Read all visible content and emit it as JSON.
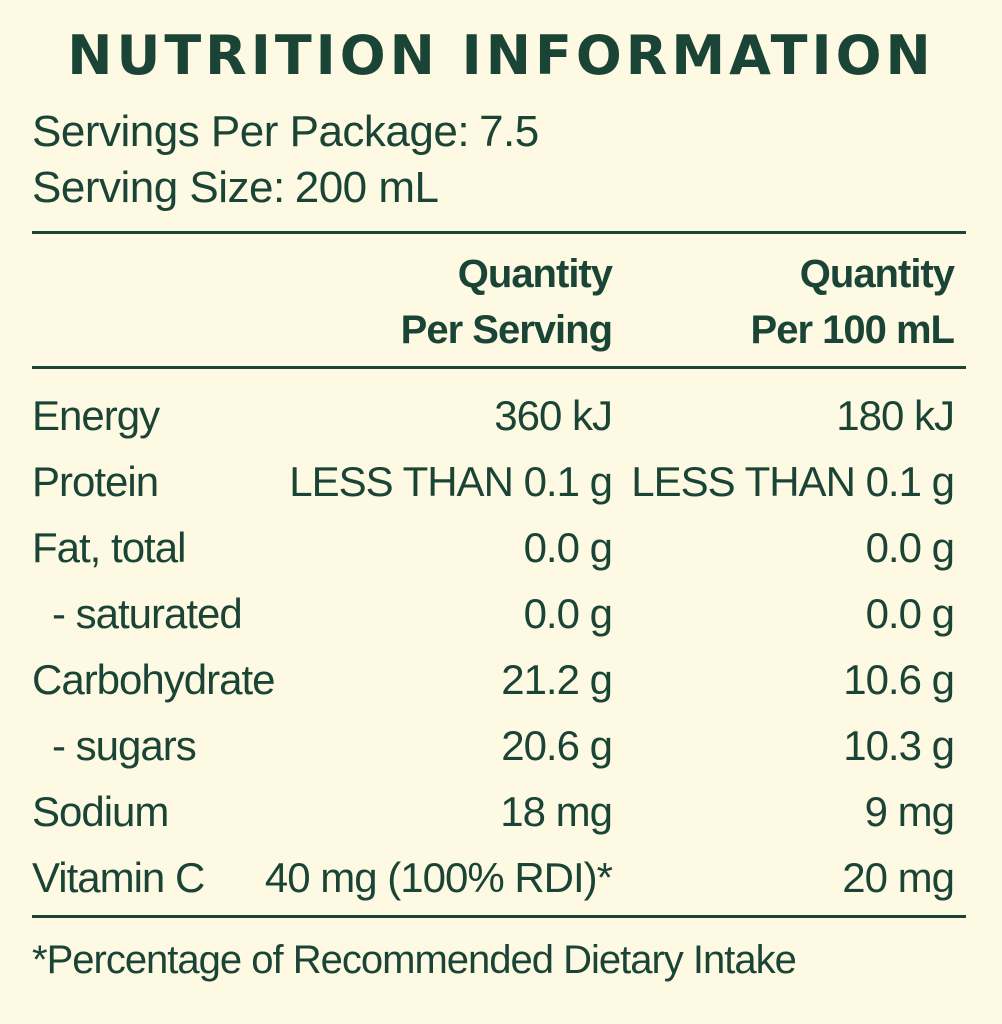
{
  "title": "NUTRITION INFORMATION",
  "servings_per_package": {
    "label": "Servings Per Package:",
    "value": "7.5"
  },
  "serving_size": {
    "label": "Serving Size:",
    "value": "200 mL"
  },
  "columns": {
    "per_serving": {
      "line1": "Quantity",
      "line2": "Per Serving"
    },
    "per_100ml": {
      "line1": "Quantity",
      "line2": "Per 100 mL"
    }
  },
  "rows": [
    {
      "name": "Energy",
      "per_serving": "360 kJ",
      "per_100ml": "180 kJ"
    },
    {
      "name": "Protein",
      "per_serving": "LESS THAN 0.1 g",
      "per_100ml": "LESS THAN 0.1 g"
    },
    {
      "name": "Fat, total",
      "per_serving": "0.0 g",
      "per_100ml": "0.0 g"
    },
    {
      "name": "- saturated",
      "per_serving": "0.0 g",
      "per_100ml": "0.0 g"
    },
    {
      "name": "Carbohydrate",
      "per_serving": "21.2 g",
      "per_100ml": "10.6 g"
    },
    {
      "name": "- sugars",
      "per_serving": "20.6 g",
      "per_100ml": "10.3 g"
    },
    {
      "name": "Sodium",
      "per_serving": "18 mg",
      "per_100ml": "9 mg"
    },
    {
      "name": "Vitamin C",
      "per_serving": "40 mg (100% RDI)*",
      "per_100ml": "20 mg"
    }
  ],
  "footnote": "*Percentage of Recommended Dietary Intake",
  "colors": {
    "background": "#fdf9e2",
    "text": "#1a4536"
  }
}
